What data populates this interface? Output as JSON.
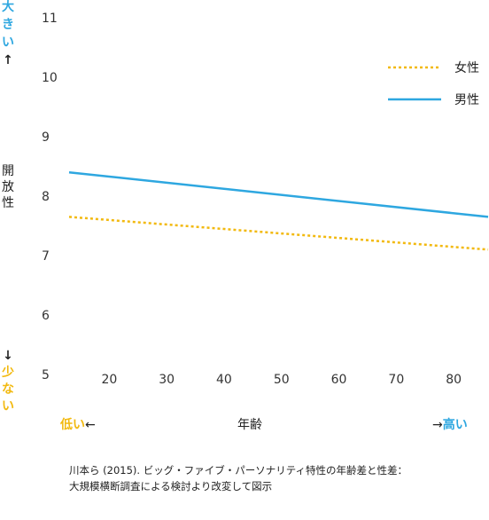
{
  "chart_data": {
    "type": "line",
    "title": "",
    "xlabel": "年齢",
    "ylabel": "開放性",
    "xlim": [
      13,
      86
    ],
    "ylim": [
      5,
      11
    ],
    "xticks": [
      20,
      30,
      40,
      50,
      60,
      70,
      80
    ],
    "yticks": [
      5,
      6,
      7,
      8,
      9,
      10,
      11
    ],
    "grid": false,
    "legend_position": "top-right",
    "series": [
      {
        "name": "女性",
        "color": "#f2b90f",
        "dash": "dotted",
        "x": [
          13,
          86
        ],
        "y": [
          7.65,
          7.1
        ]
      },
      {
        "name": "男性",
        "color": "#2ea7e0",
        "dash": "solid",
        "x": [
          13,
          86
        ],
        "y": [
          8.4,
          7.65
        ]
      }
    ],
    "y_top_annotation": "大きい↑",
    "y_bottom_annotation": "↓少ない",
    "x_left_annotation": {
      "text": "低い",
      "arrow": "←"
    },
    "x_right_annotation": {
      "arrow": "→",
      "text": "高い"
    }
  },
  "colors": {
    "accent_blue": "#2ea7e0",
    "accent_yellow": "#f2b90f"
  },
  "caption": {
    "line1": "川本ら (2015). ビッグ・ファイブ・パーソナリティ特性の年齢差と性差：",
    "line2": "大規模横断調査による検討より改変して図示"
  }
}
